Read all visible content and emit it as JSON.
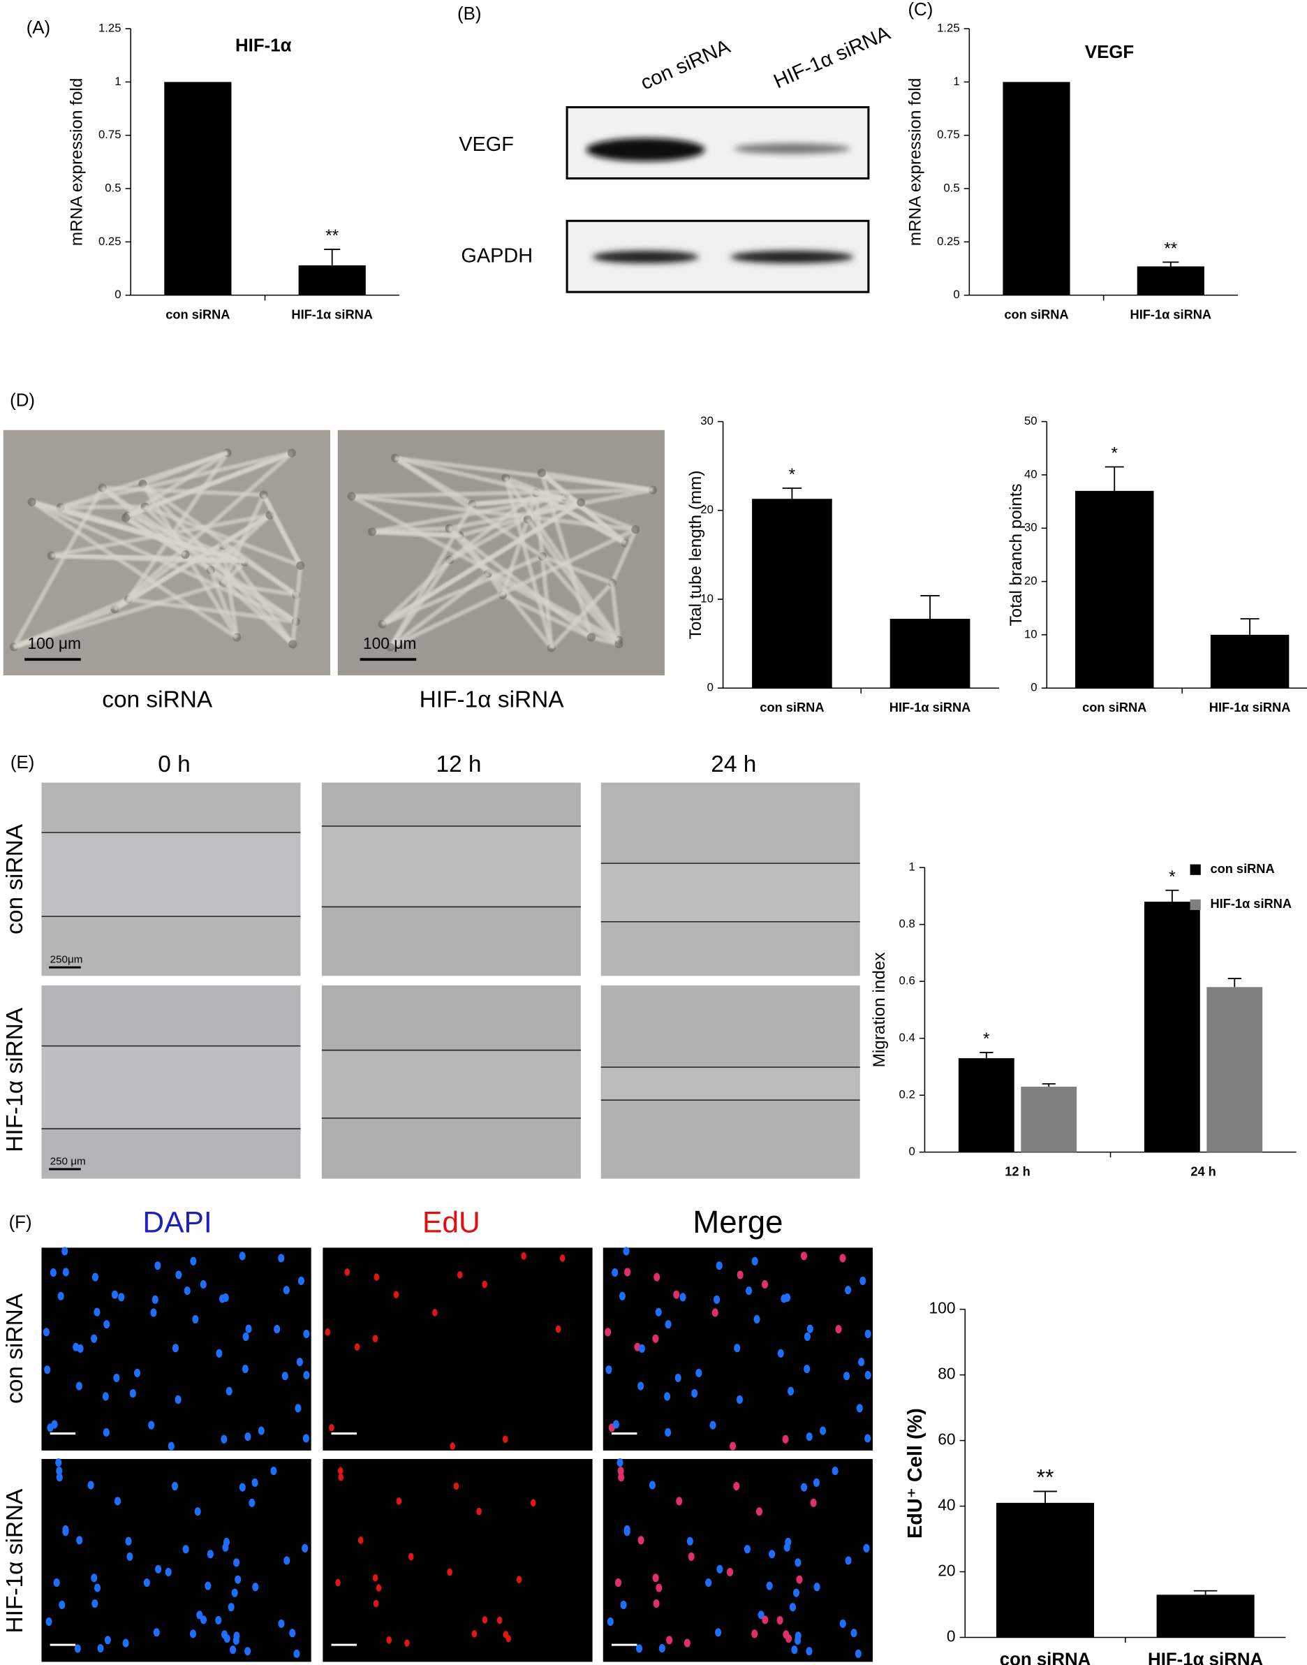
{
  "panel_labels": [
    "(A)",
    "(B)",
    "(C)",
    "(D)",
    "(E)",
    "(F)"
  ],
  "blot": {
    "lanes": [
      "con siRNA",
      "HIF-1α siRNA"
    ],
    "bands": [
      "VEGF",
      "GAPDH"
    ]
  },
  "tube_images": {
    "labels": [
      "con siRNA",
      "HIF-1α siRNA"
    ],
    "scale_bar": "100 μm"
  },
  "scratch_images": {
    "times": [
      "0 h",
      "12 h",
      "24 h"
    ],
    "rows": [
      "con siRNA",
      "HIF-1α siRNA"
    ],
    "scale_bars": [
      "250μm",
      "250 μm"
    ]
  },
  "edu_images": {
    "channels": [
      "DAPI",
      "EdU",
      "Merge"
    ],
    "rows": [
      "con siRNA",
      "HIF-1α siRNA"
    ]
  },
  "chart_data": [
    {
      "type": "bar",
      "title": "HIF-1α",
      "y_label": "mRNA expression fold",
      "categories": [
        "con siRNA",
        "HIF-1α siRNA"
      ],
      "values": [
        1,
        0.14
      ],
      "errors": [
        null,
        0.075
      ],
      "significance": [
        null,
        "**"
      ],
      "color": "#000000",
      "ylim": [
        0,
        1.25
      ],
      "yticks": [
        0,
        0.25,
        0.5,
        0.75,
        1,
        1.25
      ]
    },
    {
      "type": "bar",
      "title": "VEGF",
      "y_label": "mRNA expression fold",
      "categories": [
        "con siRNA",
        "HIF-1α siRNA"
      ],
      "values": [
        1,
        0.135
      ],
      "errors": [
        null,
        0.02
      ],
      "significance": [
        null,
        "**"
      ],
      "color": "#000000",
      "ylim": [
        0,
        1.25
      ],
      "yticks": [
        0,
        0.25,
        0.5,
        0.75,
        1,
        1.25
      ]
    },
    {
      "type": "bar",
      "y_label": "Total tube length (mm)",
      "categories": [
        "con siRNA",
        "HIF-1α siRNA"
      ],
      "values": [
        21.3,
        7.8
      ],
      "errors": [
        1.2,
        2.6
      ],
      "significance": [
        "*",
        null
      ],
      "color": "#000000",
      "ylim": [
        0,
        30
      ],
      "yticks": [
        0,
        10,
        20,
        30
      ]
    },
    {
      "type": "bar",
      "y_label": "Total branch points",
      "categories": [
        "con siRNA",
        "HIF-1α siRNA"
      ],
      "values": [
        37,
        10
      ],
      "errors": [
        4.5,
        3
      ],
      "significance": [
        "*",
        null
      ],
      "color": "#000000",
      "ylim": [
        0,
        50
      ],
      "yticks": [
        0,
        10,
        20,
        30,
        40,
        50
      ]
    },
    {
      "type": "grouped_bar",
      "y_label": "Migration index",
      "categories": [
        "12 h",
        "24 h"
      ],
      "series": [
        {
          "name": "con siRNA",
          "color": "#000000",
          "values": [
            0.33,
            0.88
          ],
          "errors": [
            0.02,
            0.04
          ],
          "significance": [
            "*",
            "*"
          ]
        },
        {
          "name": "HIF-1α siRNA",
          "color": "#808080",
          "values": [
            0.23,
            0.58
          ],
          "errors": [
            0.01,
            0.03
          ],
          "significance": [
            null,
            null
          ]
        }
      ],
      "legend": "upper right",
      "ylim": [
        0,
        1
      ],
      "yticks": [
        0,
        0.2,
        0.4,
        0.6,
        0.8,
        1
      ]
    },
    {
      "type": "bar",
      "y_label": "EdU⁺ Cell (%)",
      "categories": [
        "con siRNA",
        "HIF-1α siRNA"
      ],
      "values": [
        41,
        13
      ],
      "errors": [
        3.5,
        1.2
      ],
      "significance": [
        "**",
        null
      ],
      "color": "#000000",
      "ylim": [
        0,
        100
      ],
      "yticks": [
        0,
        20,
        40,
        60,
        80,
        100
      ]
    }
  ]
}
